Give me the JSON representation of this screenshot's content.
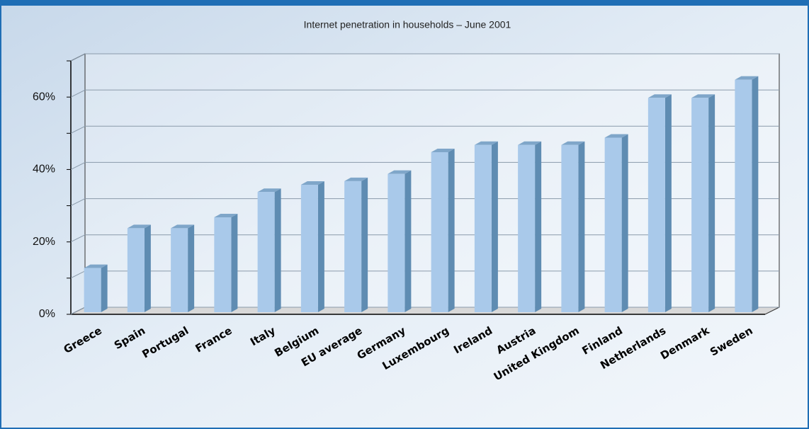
{
  "chart_data": {
    "type": "bar3d",
    "title": "Internet penetration in households – June 2001",
    "categories": [
      "Greece",
      "Spain",
      "Portugal",
      "France",
      "Italy",
      "Belgium",
      "EU average",
      "Germany",
      "Luxembourg",
      "Ireland",
      "Austria",
      "United Kingdom",
      "Finland",
      "Netherlands",
      "Denmark",
      "Sweden"
    ],
    "values": [
      12,
      23,
      23,
      26,
      33,
      35,
      36,
      38,
      44,
      46,
      46,
      46,
      48,
      59,
      59,
      64
    ],
    "color": "#a9c9ea",
    "ylim": [
      0,
      70
    ],
    "yticks": [
      {
        "value": 0,
        "label": "0%"
      },
      {
        "value": 20,
        "label": "20%"
      },
      {
        "value": 40,
        "label": "40%"
      },
      {
        "value": 60,
        "label": "60%"
      }
    ],
    "minor_yticks": [
      10,
      30,
      50,
      70
    ],
    "grid": true
  }
}
